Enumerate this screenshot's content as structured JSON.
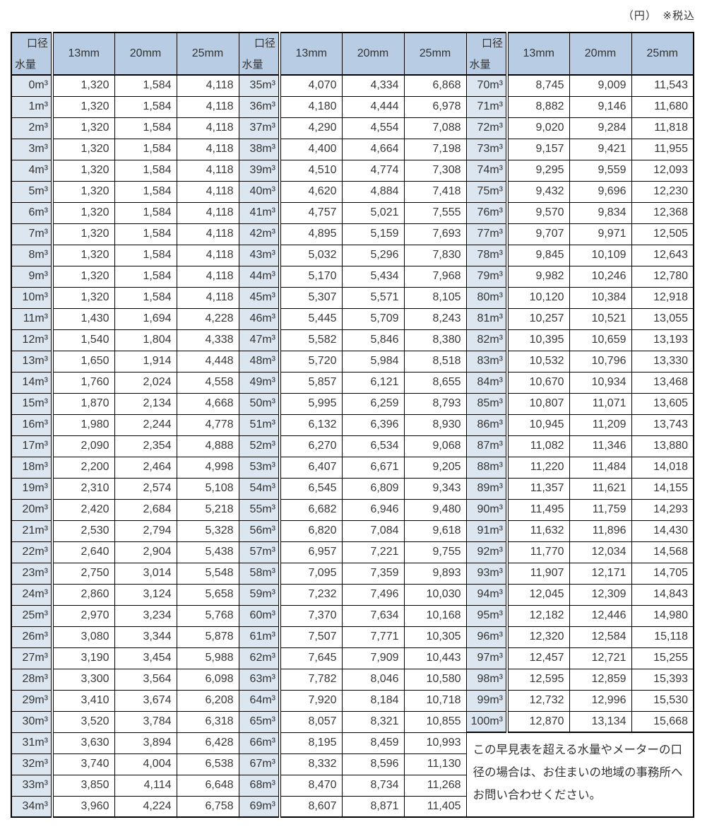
{
  "caption": "（円）　※税込",
  "header": {
    "diameter_label": "口径",
    "volume_label": "水量",
    "columns": [
      "13mm",
      "20mm",
      "25mm"
    ]
  },
  "note": "この早見表を超える水量やメーターの口径の場合は、お住まいの地域の事務所へお問い合わせください。",
  "groups": [
    {
      "rows": [
        [
          "0m³",
          "1,320",
          "1,584",
          "4,118"
        ],
        [
          "1m³",
          "1,320",
          "1,584",
          "4,118"
        ],
        [
          "2m³",
          "1,320",
          "1,584",
          "4,118"
        ],
        [
          "3m³",
          "1,320",
          "1,584",
          "4,118"
        ],
        [
          "4m³",
          "1,320",
          "1,584",
          "4,118"
        ],
        [
          "5m³",
          "1,320",
          "1,584",
          "4,118"
        ],
        [
          "6m³",
          "1,320",
          "1,584",
          "4,118"
        ],
        [
          "7m³",
          "1,320",
          "1,584",
          "4,118"
        ],
        [
          "8m³",
          "1,320",
          "1,584",
          "4,118"
        ],
        [
          "9m³",
          "1,320",
          "1,584",
          "4,118"
        ],
        [
          "10m³",
          "1,320",
          "1,584",
          "4,118"
        ],
        [
          "11m³",
          "1,430",
          "1,694",
          "4,228"
        ],
        [
          "12m³",
          "1,540",
          "1,804",
          "4,338"
        ],
        [
          "13m³",
          "1,650",
          "1,914",
          "4,448"
        ],
        [
          "14m³",
          "1,760",
          "2,024",
          "4,558"
        ],
        [
          "15m³",
          "1,870",
          "2,134",
          "4,668"
        ],
        [
          "16m³",
          "1,980",
          "2,244",
          "4,778"
        ],
        [
          "17m³",
          "2,090",
          "2,354",
          "4,888"
        ],
        [
          "18m³",
          "2,200",
          "2,464",
          "4,998"
        ],
        [
          "19m³",
          "2,310",
          "2,574",
          "5,108"
        ],
        [
          "20m³",
          "2,420",
          "2,684",
          "5,218"
        ],
        [
          "21m³",
          "2,530",
          "2,794",
          "5,328"
        ],
        [
          "22m³",
          "2,640",
          "2,904",
          "5,438"
        ],
        [
          "23m³",
          "2,750",
          "3,014",
          "5,548"
        ],
        [
          "24m³",
          "2,860",
          "3,124",
          "5,658"
        ],
        [
          "25m³",
          "2,970",
          "3,234",
          "5,768"
        ],
        [
          "26m³",
          "3,080",
          "3,344",
          "5,878"
        ],
        [
          "27m³",
          "3,190",
          "3,454",
          "5,988"
        ],
        [
          "28m³",
          "3,300",
          "3,564",
          "6,098"
        ],
        [
          "29m³",
          "3,410",
          "3,674",
          "6,208"
        ],
        [
          "30m³",
          "3,520",
          "3,784",
          "6,318"
        ],
        [
          "31m³",
          "3,630",
          "3,894",
          "6,428"
        ],
        [
          "32m³",
          "3,740",
          "4,004",
          "6,538"
        ],
        [
          "33m³",
          "3,850",
          "4,114",
          "6,648"
        ],
        [
          "34m³",
          "3,960",
          "4,224",
          "6,758"
        ]
      ]
    },
    {
      "rows": [
        [
          "35m³",
          "4,070",
          "4,334",
          "6,868"
        ],
        [
          "36m³",
          "4,180",
          "4,444",
          "6,978"
        ],
        [
          "37m³",
          "4,290",
          "4,554",
          "7,088"
        ],
        [
          "38m³",
          "4,400",
          "4,664",
          "7,198"
        ],
        [
          "39m³",
          "4,510",
          "4,774",
          "7,308"
        ],
        [
          "40m³",
          "4,620",
          "4,884",
          "7,418"
        ],
        [
          "41m³",
          "4,757",
          "5,021",
          "7,555"
        ],
        [
          "42m³",
          "4,895",
          "5,159",
          "7,693"
        ],
        [
          "43m³",
          "5,032",
          "5,296",
          "7,830"
        ],
        [
          "44m³",
          "5,170",
          "5,434",
          "7,968"
        ],
        [
          "45m³",
          "5,307",
          "5,571",
          "8,105"
        ],
        [
          "46m³",
          "5,445",
          "5,709",
          "8,243"
        ],
        [
          "47m³",
          "5,582",
          "5,846",
          "8,380"
        ],
        [
          "48m³",
          "5,720",
          "5,984",
          "8,518"
        ],
        [
          "49m³",
          "5,857",
          "6,121",
          "8,655"
        ],
        [
          "50m³",
          "5,995",
          "6,259",
          "8,793"
        ],
        [
          "51m³",
          "6,132",
          "6,396",
          "8,930"
        ],
        [
          "52m³",
          "6,270",
          "6,534",
          "9,068"
        ],
        [
          "53m³",
          "6,407",
          "6,671",
          "9,205"
        ],
        [
          "54m³",
          "6,545",
          "6,809",
          "9,343"
        ],
        [
          "55m³",
          "6,682",
          "6,946",
          "9,480"
        ],
        [
          "56m³",
          "6,820",
          "7,084",
          "9,618"
        ],
        [
          "57m³",
          "6,957",
          "7,221",
          "9,755"
        ],
        [
          "58m³",
          "7,095",
          "7,359",
          "9,893"
        ],
        [
          "59m³",
          "7,232",
          "7,496",
          "10,030"
        ],
        [
          "60m³",
          "7,370",
          "7,634",
          "10,168"
        ],
        [
          "61m³",
          "7,507",
          "7,771",
          "10,305"
        ],
        [
          "62m³",
          "7,645",
          "7,909",
          "10,443"
        ],
        [
          "63m³",
          "7,782",
          "8,046",
          "10,580"
        ],
        [
          "64m³",
          "7,920",
          "8,184",
          "10,718"
        ],
        [
          "65m³",
          "8,057",
          "8,321",
          "10,855"
        ],
        [
          "66m³",
          "8,195",
          "8,459",
          "10,993"
        ],
        [
          "67m³",
          "8,332",
          "8,596",
          "11,130"
        ],
        [
          "68m³",
          "8,470",
          "8,734",
          "11,268"
        ],
        [
          "69m³",
          "8,607",
          "8,871",
          "11,405"
        ]
      ]
    },
    {
      "rows": [
        [
          "70m³",
          "8,745",
          "9,009",
          "11,543"
        ],
        [
          "71m³",
          "8,882",
          "9,146",
          "11,680"
        ],
        [
          "72m³",
          "9,020",
          "9,284",
          "11,818"
        ],
        [
          "73m³",
          "9,157",
          "9,421",
          "11,955"
        ],
        [
          "74m³",
          "9,295",
          "9,559",
          "12,093"
        ],
        [
          "75m³",
          "9,432",
          "9,696",
          "12,230"
        ],
        [
          "76m³",
          "9,570",
          "9,834",
          "12,368"
        ],
        [
          "77m³",
          "9,707",
          "9,971",
          "12,505"
        ],
        [
          "78m³",
          "9,845",
          "10,109",
          "12,643"
        ],
        [
          "79m³",
          "9,982",
          "10,246",
          "12,780"
        ],
        [
          "80m³",
          "10,120",
          "10,384",
          "12,918"
        ],
        [
          "81m³",
          "10,257",
          "10,521",
          "13,055"
        ],
        [
          "82m³",
          "10,395",
          "10,659",
          "13,193"
        ],
        [
          "83m³",
          "10,532",
          "10,796",
          "13,330"
        ],
        [
          "84m³",
          "10,670",
          "10,934",
          "13,468"
        ],
        [
          "85m³",
          "10,807",
          "11,071",
          "13,605"
        ],
        [
          "86m³",
          "10,945",
          "11,209",
          "13,743"
        ],
        [
          "87m³",
          "11,082",
          "11,346",
          "13,880"
        ],
        [
          "88m³",
          "11,220",
          "11,484",
          "14,018"
        ],
        [
          "89m³",
          "11,357",
          "11,621",
          "14,155"
        ],
        [
          "90m³",
          "11,495",
          "11,759",
          "14,293"
        ],
        [
          "91m³",
          "11,632",
          "11,896",
          "14,430"
        ],
        [
          "92m³",
          "11,770",
          "12,034",
          "14,568"
        ],
        [
          "93m³",
          "11,907",
          "12,171",
          "14,705"
        ],
        [
          "94m³",
          "12,045",
          "12,309",
          "14,843"
        ],
        [
          "95m³",
          "12,182",
          "12,446",
          "14,980"
        ],
        [
          "96m³",
          "12,320",
          "12,584",
          "15,118"
        ],
        [
          "97m³",
          "12,457",
          "12,721",
          "15,255"
        ],
        [
          "98m³",
          "12,595",
          "12,859",
          "15,393"
        ],
        [
          "99m³",
          "12,732",
          "12,996",
          "15,530"
        ],
        [
          "100m³",
          "12,870",
          "13,134",
          "15,668"
        ]
      ]
    }
  ]
}
